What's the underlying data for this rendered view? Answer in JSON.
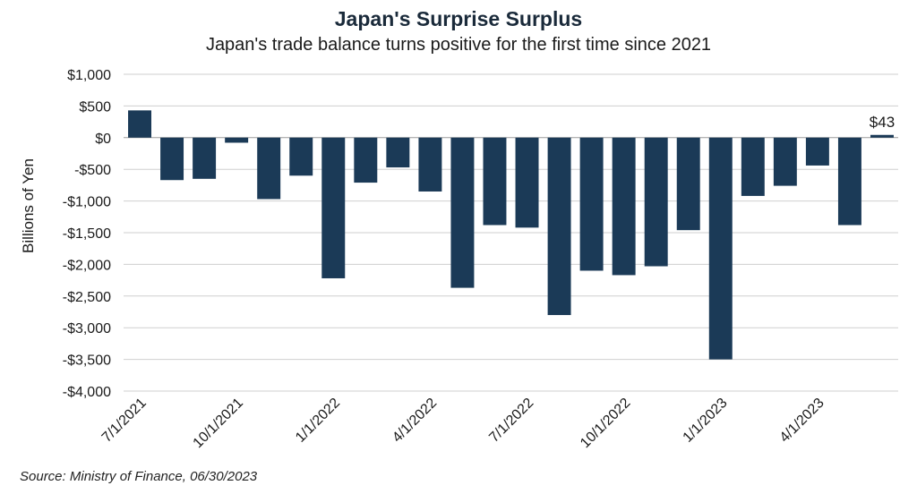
{
  "chart_data": {
    "type": "bar",
    "title": "Japan's Surprise Surplus",
    "subtitle": "Japan's trade balance turns positive for the first time since 2021",
    "ylabel": "Billions of Yen",
    "xlabel": "",
    "source": "Source: Ministry of Finance, 06/30/2023",
    "ylim": [
      -4000,
      1000
    ],
    "y_ticks": [
      1000,
      500,
      0,
      -500,
      -1000,
      -1500,
      -2000,
      -2500,
      -3000,
      -3500,
      -4000
    ],
    "y_tick_labels": [
      "$1,000",
      "$500",
      "$0",
      "-$500",
      "-$1,000",
      "-$1,500",
      "-$2,000",
      "-$2,500",
      "-$3,000",
      "-$3,500",
      "-$4,000"
    ],
    "grid": true,
    "bar_color": "#1b3a57",
    "categories": [
      "7/1/2021",
      "8/1/2021",
      "9/1/2021",
      "10/1/2021",
      "11/1/2021",
      "12/1/2021",
      "1/1/2022",
      "2/1/2022",
      "3/1/2022",
      "4/1/2022",
      "5/1/2022",
      "6/1/2022",
      "7/1/2022",
      "8/1/2022",
      "9/1/2022",
      "10/1/2022",
      "11/1/2022",
      "12/1/2022",
      "1/1/2023",
      "2/1/2023",
      "3/1/2023",
      "4/1/2023",
      "5/1/2023",
      "6/1/2023"
    ],
    "x_tick_labels": [
      "7/1/2021",
      "10/1/2021",
      "1/1/2022",
      "4/1/2022",
      "7/1/2022",
      "10/1/2022",
      "1/1/2023",
      "4/1/2023"
    ],
    "values": [
      430,
      -670,
      -650,
      -80,
      -970,
      -600,
      -2220,
      -710,
      -470,
      -850,
      -2370,
      -1380,
      -1420,
      -2800,
      -2100,
      -2170,
      -2030,
      -1460,
      -3500,
      -920,
      -760,
      -440,
      -1380,
      43
    ],
    "annotations": [
      {
        "index": 23,
        "text": "$43"
      }
    ]
  }
}
